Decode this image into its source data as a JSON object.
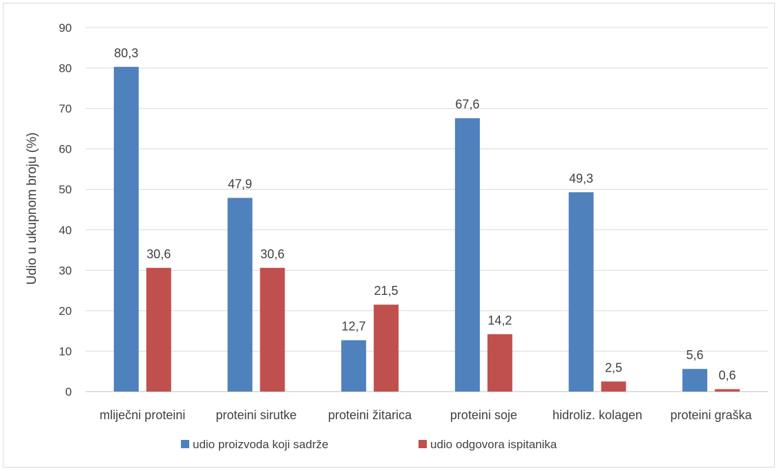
{
  "chart_data": {
    "type": "bar",
    "title": "",
    "xlabel": "",
    "ylabel": "Udio u ukupnom broju (%)",
    "ylim": [
      0,
      90
    ],
    "ytick_step": 10,
    "yticks": [
      "0",
      "10",
      "20",
      "30",
      "40",
      "50",
      "60",
      "70",
      "80",
      "90"
    ],
    "grid": true,
    "legend_position": "bottom",
    "categories": [
      "mliječni proteini",
      "proteini sirutke",
      "proteini žitarica",
      "proteini soje",
      "hidroliz. kolagen",
      "proteini graška"
    ],
    "series": [
      {
        "name": "udio proizvoda koji sadrže",
        "color": "#4f81bd",
        "values": [
          80.3,
          47.9,
          12.7,
          67.6,
          49.3,
          5.6
        ],
        "labels": [
          "80,3",
          "47,9",
          "12,7",
          "67,6",
          "49,3",
          "5,6"
        ]
      },
      {
        "name": "udio odgovora ispitanika",
        "color": "#c0504d",
        "values": [
          30.6,
          30.6,
          21.5,
          14.2,
          2.5,
          0.6
        ],
        "labels": [
          "30,6",
          "30,6",
          "21,5",
          "14,2",
          "2,5",
          "0,6"
        ]
      }
    ]
  }
}
